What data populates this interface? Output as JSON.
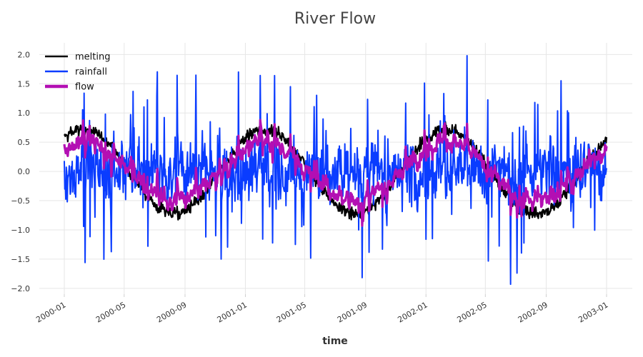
{
  "chart_data": {
    "type": "line",
    "title": "River Flow",
    "xlabel": "time",
    "ylabel": "",
    "x_range": [
      "2000-01-01",
      "2002-12-31"
    ],
    "ylim": [
      -2.1,
      2.2
    ],
    "yticks": [
      -2.0,
      -1.5,
      -1.0,
      -0.5,
      0.0,
      0.5,
      1.0,
      1.5,
      2.0
    ],
    "ytick_labels": [
      "−2.0",
      "−1.5",
      "−1.0",
      "−0.5",
      "0.0",
      "0.5",
      "1.0",
      "1.5",
      "2.0"
    ],
    "xticks": [
      "2000-01-01",
      "2000-05-01",
      "2000-09-01",
      "2001-01-01",
      "2001-05-01",
      "2001-09-01",
      "2002-01-01",
      "2002-05-01",
      "2002-09-01",
      "2003-01-01"
    ],
    "xtick_labels": [
      "2000-01",
      "2000-05",
      "2000-09",
      "2001-01",
      "2001-05",
      "2001-09",
      "2002-01",
      "2002-05",
      "2002-09",
      "2003-01"
    ],
    "grid": true,
    "legend_position": "top-left",
    "series": [
      {
        "name": "melting",
        "color": "#000000",
        "description": "seasonal oscillation, amplitude ~0.8, peaks around March and troughs around September, with daily noise"
      },
      {
        "name": "rainfall",
        "color": "#0a3cff",
        "description": "spiky daily rainfall anomaly between about -1.9 and 2.0"
      },
      {
        "name": "flow",
        "color": "#b30fb3",
        "description": "combination of melting and rainfall, smoothed, range about -1.0 to 1.1"
      }
    ]
  }
}
